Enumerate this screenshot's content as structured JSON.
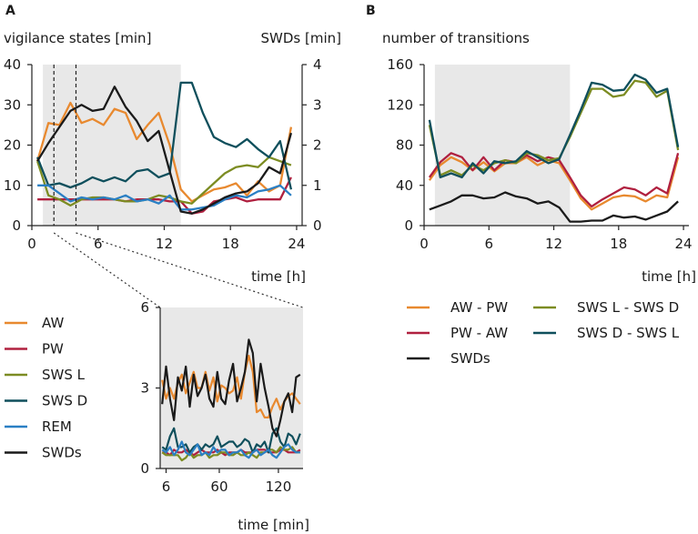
{
  "colors": {
    "AW": "#e8892f",
    "PW": "#b0203f",
    "SWS_L": "#7c8c22",
    "SWS_D": "#0f4f5c",
    "REM": "#2a7fc4",
    "SWDs": "#1a1a1a",
    "AW_PW": "#e8892f",
    "PW_AW": "#b0203f",
    "SWSL_SWSD": "#7c8c22",
    "SWSD_SWSL": "#0f4f5c",
    "shade": "#e8e8e8"
  },
  "chart_data": [
    {
      "id": "A",
      "panel_label": "A",
      "type": "line",
      "ylabel": "vigilance states [min]",
      "ylabel_right": "SWDs [min]",
      "xlabel": "time [h]",
      "xlim": [
        0,
        24.5
      ],
      "ylim": [
        0,
        40
      ],
      "ylim_right": [
        0,
        4
      ],
      "xticks": [
        "0",
        "6",
        "12",
        "18",
        "24"
      ],
      "xtick_values": [
        0,
        6,
        12,
        18,
        24
      ],
      "yticks": [
        "0",
        "10",
        "20",
        "30",
        "40"
      ],
      "ytick_values": [
        0,
        10,
        20,
        30,
        40
      ],
      "yticks_right": [
        "0",
        "1",
        "2",
        "3",
        "4"
      ],
      "ytick_values_right": [
        0,
        1,
        2,
        3,
        4
      ],
      "shaded_x": [
        1,
        13.5
      ],
      "zoom_window_x": [
        2,
        4
      ],
      "x": [
        0.5,
        1.5,
        2.5,
        3.5,
        4.5,
        5.5,
        6.5,
        7.5,
        8.5,
        9.5,
        10.5,
        11.5,
        12.5,
        13.5,
        14.5,
        15.5,
        16.5,
        17.5,
        18.5,
        19.5,
        20.5,
        21.5,
        22.5,
        23.5
      ],
      "series": [
        {
          "name": "AW",
          "color_key": "AW",
          "axis": "left",
          "values": [
            16,
            25.5,
            25,
            30.5,
            25.5,
            26.5,
            25,
            29,
            28,
            21.5,
            25,
            28,
            20,
            9,
            6,
            7.5,
            9,
            9.5,
            10.5,
            7.5,
            11,
            8.5,
            10,
            24.5
          ]
        },
        {
          "name": "PW",
          "color_key": "PW",
          "axis": "left",
          "values": [
            6.5,
            6.5,
            6.5,
            6.5,
            6.5,
            6.5,
            6.5,
            6.5,
            6,
            6.5,
            6.5,
            6.5,
            6,
            6,
            3,
            3.5,
            6,
            6.5,
            7,
            6,
            6.5,
            6.5,
            6.5,
            12
          ]
        },
        {
          "name": "SWS L",
          "color_key": "SWS_L",
          "axis": "left",
          "values": [
            16,
            7.5,
            6.5,
            5,
            6.5,
            7,
            7,
            6.5,
            6,
            6,
            6.5,
            7.5,
            7,
            6,
            5.5,
            8,
            10.5,
            13,
            14.5,
            15,
            14.5,
            17,
            16,
            15
          ]
        },
        {
          "name": "SWS D",
          "color_key": "SWS_D",
          "axis": "left",
          "values": [
            17,
            10,
            10.5,
            9.5,
            10.5,
            12,
            11,
            12,
            11,
            13.5,
            14,
            12,
            13,
            35.5,
            35.5,
            28,
            22,
            20.5,
            19.5,
            21.5,
            19,
            17,
            21,
            9
          ]
        },
        {
          "name": "REM",
          "color_key": "REM",
          "axis": "left",
          "values": [
            10,
            10,
            8,
            6,
            7,
            6.5,
            7,
            6.5,
            7.5,
            6,
            6.5,
            5.5,
            7.5,
            4,
            4,
            4.5,
            5,
            6.5,
            7.5,
            7,
            8.5,
            9,
            10,
            7.5
          ]
        },
        {
          "name": "SWDs",
          "color_key": "SWDs",
          "axis": "right",
          "values": [
            1.6,
            2.05,
            2.45,
            2.85,
            3.0,
            2.85,
            2.9,
            3.45,
            2.95,
            2.6,
            2.1,
            2.35,
            1.35,
            0.35,
            0.3,
            0.4,
            0.55,
            0.7,
            0.8,
            0.85,
            1.05,
            1.45,
            1.3,
            2.3
          ]
        }
      ]
    },
    {
      "id": "A-inset",
      "type": "line",
      "xlabel": "time [min]",
      "ylim": [
        0,
        6
      ],
      "yticks": [
        "0",
        "3",
        "6"
      ],
      "ytick_values": [
        0,
        3,
        6
      ],
      "xticks": [
        "6",
        "60",
        "120"
      ],
      "xtick_values": [
        6,
        60,
        120
      ],
      "x": [
        2,
        6,
        10,
        14,
        18,
        22,
        26,
        30,
        34,
        38,
        42,
        46,
        50,
        54,
        58,
        62,
        66,
        70,
        74,
        78,
        82,
        86,
        90,
        94,
        98,
        102,
        106,
        110,
        114,
        118,
        122,
        126,
        130,
        134,
        138,
        142
      ],
      "xlim": [
        0,
        145
      ],
      "series": [
        {
          "name": "AW",
          "color_key": "AW",
          "values": [
            3.3,
            2.6,
            3.0,
            2.6,
            3.2,
            3.5,
            2.8,
            3.2,
            3.6,
            3.0,
            3.0,
            3.6,
            2.9,
            3.4,
            2.5,
            3.1,
            3.0,
            2.8,
            2.9,
            3.4,
            2.6,
            3.6,
            4.2,
            3.6,
            2.1,
            2.2,
            1.9,
            1.9,
            2.3,
            2.6,
            2.2,
            2.5,
            2.7,
            2.8,
            2.6,
            2.4
          ]
        },
        {
          "name": "PW",
          "color_key": "PW",
          "values": [
            0.6,
            0.6,
            0.5,
            0.7,
            0.6,
            0.6,
            0.7,
            0.6,
            0.5,
            0.6,
            0.7,
            0.6,
            0.6,
            0.6,
            0.7,
            0.6,
            0.5,
            0.6,
            0.6,
            0.6,
            0.7,
            0.6,
            0.6,
            0.6,
            0.7,
            0.7,
            0.7,
            0.6,
            0.6,
            0.6,
            0.7,
            0.7,
            0.6,
            0.6,
            0.6,
            0.7
          ]
        },
        {
          "name": "SWS L",
          "color_key": "SWS_L",
          "values": [
            0.6,
            0.5,
            0.5,
            0.5,
            0.5,
            0.3,
            0.4,
            0.6,
            0.4,
            0.5,
            0.5,
            0.6,
            0.4,
            0.5,
            0.5,
            0.6,
            0.6,
            0.5,
            0.5,
            0.6,
            0.5,
            0.5,
            0.6,
            0.5,
            0.4,
            0.6,
            0.6,
            0.7,
            0.7,
            0.6,
            0.8,
            0.7,
            0.7,
            0.8,
            0.6,
            0.6
          ]
        },
        {
          "name": "SWS D",
          "color_key": "SWS_D",
          "values": [
            0.8,
            0.7,
            1.2,
            1.5,
            0.8,
            0.8,
            0.9,
            0.6,
            0.8,
            0.9,
            0.7,
            0.9,
            0.8,
            0.9,
            1.2,
            0.8,
            0.9,
            1.0,
            1.0,
            0.8,
            0.9,
            1.1,
            1.0,
            0.6,
            0.9,
            0.8,
            1.0,
            0.6,
            1.3,
            1.5,
            1.0,
            0.8,
            1.3,
            1.2,
            0.9,
            1.3
          ]
        },
        {
          "name": "REM",
          "color_key": "REM",
          "values": [
            0.7,
            0.6,
            0.8,
            0.5,
            0.7,
            1.0,
            0.6,
            0.5,
            0.7,
            0.9,
            0.5,
            0.6,
            0.5,
            0.8,
            0.6,
            0.7,
            0.7,
            0.5,
            0.6,
            0.6,
            0.7,
            0.5,
            0.4,
            0.6,
            0.7,
            0.5,
            0.6,
            0.7,
            0.5,
            0.4,
            0.6,
            0.8,
            0.9,
            0.7,
            0.6,
            0.6
          ]
        },
        {
          "name": "SWDs",
          "color_key": "SWDs",
          "values": [
            2.4,
            3.8,
            2.6,
            1.8,
            3.4,
            2.9,
            3.8,
            2.3,
            3.5,
            2.7,
            3.0,
            3.5,
            2.6,
            2.3,
            3.6,
            2.6,
            2.4,
            3.3,
            3.9,
            2.5,
            3.0,
            3.6,
            4.8,
            4.3,
            2.5,
            3.9,
            3.0,
            2.3,
            1.5,
            1.2,
            1.8,
            2.5,
            2.8,
            2.1,
            3.4,
            3.5
          ]
        }
      ]
    },
    {
      "id": "B",
      "panel_label": "B",
      "type": "line",
      "ylabel": "number of transitions",
      "xlabel": "time [h]",
      "xlim": [
        0,
        24.5
      ],
      "ylim": [
        0,
        160
      ],
      "xticks": [
        "0",
        "6",
        "12",
        "18",
        "24"
      ],
      "xtick_values": [
        0,
        6,
        12,
        18,
        24
      ],
      "yticks": [
        "0",
        "40",
        "80",
        "120",
        "160"
      ],
      "ytick_values": [
        0,
        40,
        80,
        120,
        160
      ],
      "shaded_x": [
        1,
        13.5
      ],
      "x": [
        0.5,
        1.5,
        2.5,
        3.5,
        4.5,
        5.5,
        6.5,
        7.5,
        8.5,
        9.5,
        10.5,
        11.5,
        12.5,
        13.5,
        14.5,
        15.5,
        16.5,
        17.5,
        18.5,
        19.5,
        20.5,
        21.5,
        22.5,
        23.5
      ],
      "series": [
        {
          "name": "AW - PW",
          "color_key": "AW_PW",
          "values": [
            45,
            60,
            68,
            63,
            55,
            63,
            54,
            62,
            62,
            68,
            60,
            65,
            62,
            45,
            27,
            16,
            22,
            28,
            30,
            29,
            24,
            30,
            28,
            68
          ]
        },
        {
          "name": "PW - AW",
          "color_key": "PW_AW",
          "values": [
            48,
            63,
            72,
            68,
            55,
            68,
            55,
            65,
            63,
            70,
            64,
            68,
            65,
            48,
            30,
            19,
            26,
            32,
            38,
            36,
            30,
            38,
            32,
            72
          ]
        },
        {
          "name": "SWS L - SWS D",
          "color_key": "SWSL_SWSD",
          "values": [
            100,
            50,
            55,
            50,
            60,
            55,
            62,
            65,
            62,
            72,
            70,
            65,
            67,
            88,
            112,
            136,
            136,
            128,
            130,
            144,
            142,
            128,
            134,
            75
          ]
        },
        {
          "name": "SWS D - SWS L",
          "color_key": "SWSD_SWSL",
          "values": [
            105,
            48,
            52,
            48,
            62,
            52,
            64,
            62,
            64,
            74,
            68,
            62,
            66,
            90,
            115,
            142,
            140,
            134,
            135,
            150,
            145,
            132,
            136,
            78
          ]
        },
        {
          "name": "SWDs",
          "color_key": "SWDs",
          "values": [
            16,
            20,
            24,
            30,
            30,
            27,
            28,
            33,
            29,
            27,
            22,
            24,
            18,
            4,
            4,
            5,
            5,
            10,
            8,
            9,
            6,
            10,
            14,
            24
          ]
        }
      ]
    }
  ],
  "legend_A": [
    {
      "label": "AW",
      "color_key": "AW"
    },
    {
      "label": "PW",
      "color_key": "PW"
    },
    {
      "label": "SWS L",
      "color_key": "SWS_L"
    },
    {
      "label": "SWS D",
      "color_key": "SWS_D"
    },
    {
      "label": "REM",
      "color_key": "REM"
    },
    {
      "label": "SWDs",
      "color_key": "SWDs"
    }
  ],
  "legend_B": [
    {
      "label": "AW - PW",
      "color_key": "AW_PW"
    },
    {
      "label": "SWS L - SWS D",
      "color_key": "SWSL_SWSD"
    },
    {
      "label": "PW - AW",
      "color_key": "PW_AW"
    },
    {
      "label": "SWS D - SWS L",
      "color_key": "SWSD_SWSL"
    },
    {
      "label": "SWDs",
      "color_key": "SWDs"
    }
  ]
}
